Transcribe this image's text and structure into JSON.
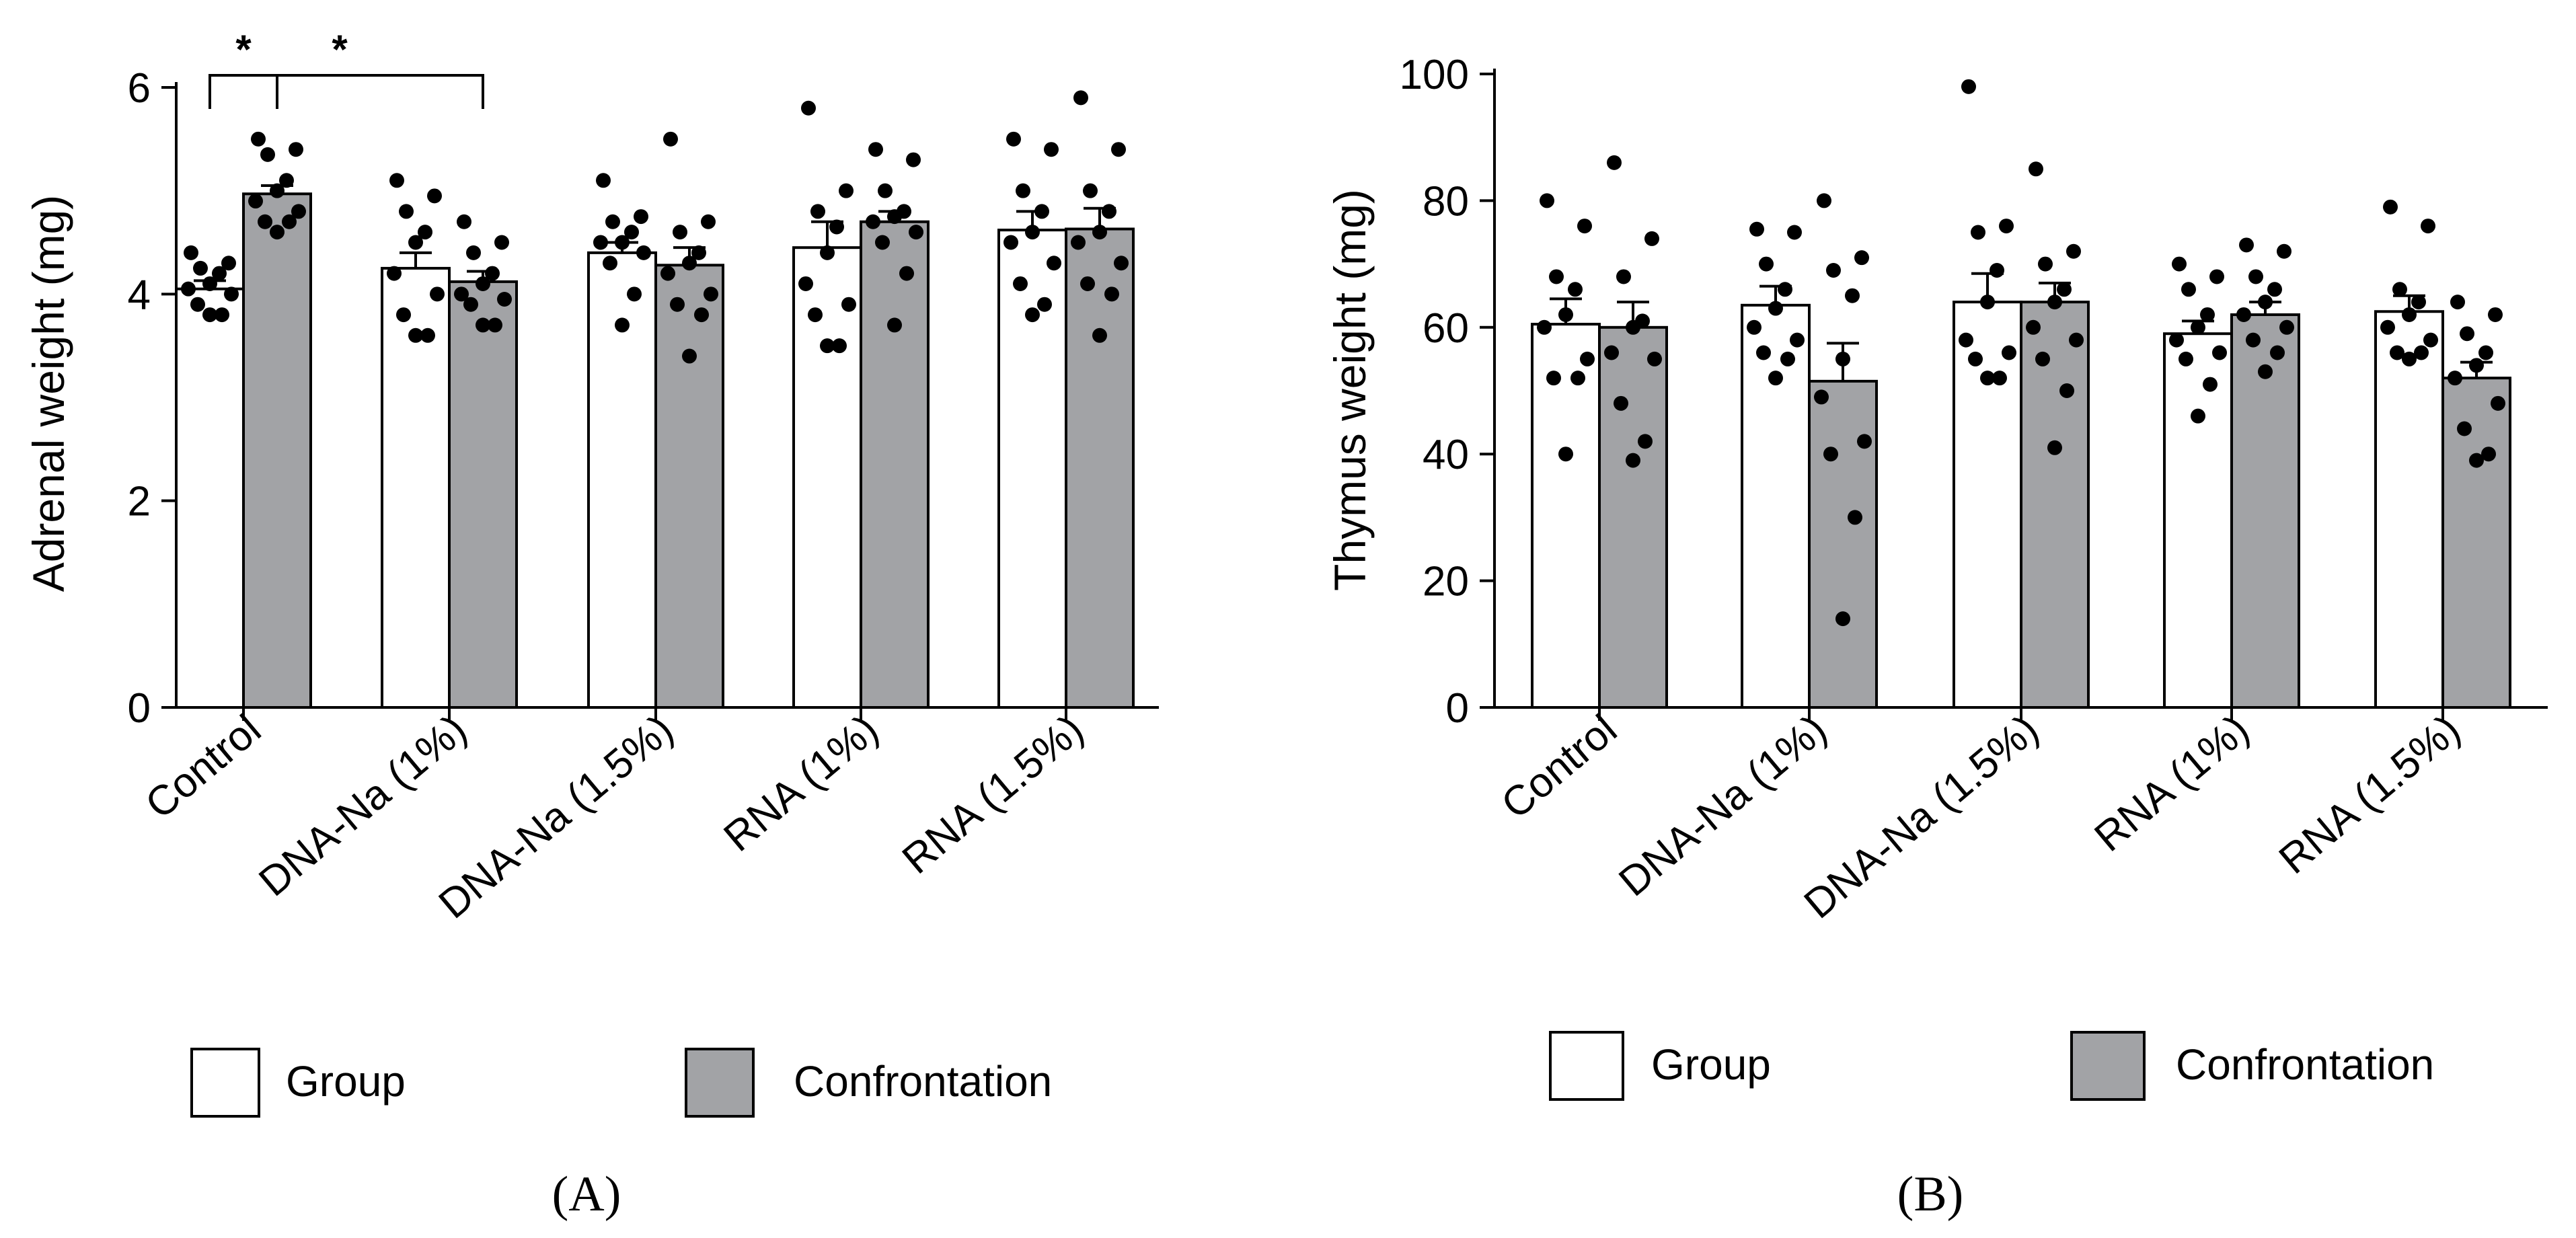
{
  "chart_data": [
    {
      "panel": "(A)",
      "type": "bar",
      "ylabel": "Adrenal weight (mg)",
      "ylim": [
        0,
        6
      ],
      "yticks": [
        0,
        2,
        4,
        6
      ],
      "categories": [
        "Control",
        "DNA-Na (1%)",
        "DNA-Na (1.5%)",
        "RNA (1%)",
        "RNA (1.5%)"
      ],
      "series": [
        {
          "name": "Group",
          "color": "#ffffff",
          "values": [
            4.05,
            4.25,
            4.4,
            4.45,
            4.62
          ],
          "sem": [
            0.08,
            0.15,
            0.1,
            0.25,
            0.18
          ],
          "points": [
            [
              4.4,
              4.3,
              4.25,
              4.2,
              4.1,
              4.05,
              4.0,
              3.9,
              3.8,
              3.8
            ],
            [
              5.1,
              4.95,
              4.8,
              4.6,
              4.5,
              4.2,
              4.0,
              3.8,
              3.6,
              3.6
            ],
            [
              5.1,
              4.75,
              4.7,
              4.6,
              4.5,
              4.5,
              4.4,
              4.3,
              4.0,
              3.7
            ],
            [
              5.8,
              5.0,
              4.8,
              4.65,
              4.4,
              4.1,
              3.9,
              3.8,
              3.5,
              3.5
            ],
            [
              5.5,
              5.4,
              5.0,
              4.8,
              4.6,
              4.5,
              4.3,
              4.1,
              3.9,
              3.8
            ]
          ]
        },
        {
          "name": "Confrontation",
          "color": "#a2a3a6",
          "values": [
            4.97,
            4.12,
            4.28,
            4.7,
            4.63
          ],
          "sem": [
            0.08,
            0.1,
            0.17,
            0.1,
            0.2
          ],
          "points": [
            [
              5.5,
              5.4,
              5.35,
              5.1,
              5.0,
              4.9,
              4.8,
              4.7,
              4.7,
              4.6
            ],
            [
              4.7,
              4.5,
              4.4,
              4.2,
              4.1,
              4.0,
              3.95,
              3.9,
              3.7,
              3.7
            ],
            [
              5.5,
              4.7,
              4.6,
              4.4,
              4.3,
              4.2,
              4.0,
              3.9,
              3.8,
              3.4
            ],
            [
              5.4,
              5.3,
              5.0,
              4.8,
              4.75,
              4.7,
              4.6,
              4.5,
              4.2,
              3.7
            ],
            [
              5.9,
              5.4,
              5.0,
              4.8,
              4.6,
              4.5,
              4.3,
              4.1,
              4.0,
              3.6
            ]
          ]
        }
      ],
      "significance": [
        {
          "label": "*",
          "from": "Control / Group",
          "to": "Control / Confrontation"
        },
        {
          "label": "*",
          "from": "Control / Confrontation",
          "to": "DNA-Na (1%) / Confrontation"
        }
      ],
      "legend": {
        "position": "bottom",
        "entries": [
          "Group",
          "Confrontation"
        ]
      }
    },
    {
      "panel": "(B)",
      "type": "bar",
      "ylabel": "Thymus weight (mg)",
      "ylim": [
        0,
        100
      ],
      "yticks": [
        0,
        20,
        40,
        60,
        80,
        100
      ],
      "categories": [
        "Control",
        "DNA-Na (1%)",
        "DNA-Na (1.5%)",
        "RNA (1%)",
        "RNA (1.5%)"
      ],
      "series": [
        {
          "name": "Group",
          "color": "#ffffff",
          "values": [
            60.5,
            63.5,
            64.0,
            59.0,
            62.5
          ],
          "sem": [
            4.0,
            3.0,
            4.5,
            2.0,
            2.5
          ],
          "points": [
            [
              80,
              76,
              68,
              66,
              62,
              60,
              55,
              52,
              52,
              40
            ],
            [
              75.5,
              75,
              70,
              66,
              63,
              60,
              58,
              56,
              55,
              52
            ],
            [
              98,
              76,
              75,
              69,
              64,
              58,
              56,
              55,
              52,
              52
            ],
            [
              70,
              68,
              66,
              62,
              60,
              58,
              56,
              55,
              51,
              46
            ],
            [
              79,
              76,
              66,
              64,
              62,
              60,
              58,
              56,
              56,
              55
            ]
          ]
        },
        {
          "name": "Confrontation",
          "color": "#a2a3a6",
          "values": [
            60.0,
            51.5,
            64.0,
            62.0,
            52.0
          ],
          "sem": [
            4.0,
            6.0,
            3.0,
            2.0,
            2.5
          ],
          "points": [
            [
              86,
              74,
              68,
              61,
              60,
              56,
              55,
              48,
              42,
              39
            ],
            [
              80,
              71,
              69,
              65,
              55,
              49,
              42,
              40,
              30,
              14
            ],
            [
              85,
              72,
              70,
              66,
              64,
              60,
              58,
              55,
              50,
              41
            ],
            [
              73,
              72,
              68,
              66,
              64,
              62,
              60,
              58,
              56,
              53
            ],
            [
              64,
              62,
              59,
              56,
              54,
              52,
              48,
              44,
              40,
              39
            ]
          ]
        }
      ],
      "legend": {
        "position": "bottom",
        "entries": [
          "Group",
          "Confrontation"
        ]
      }
    }
  ]
}
